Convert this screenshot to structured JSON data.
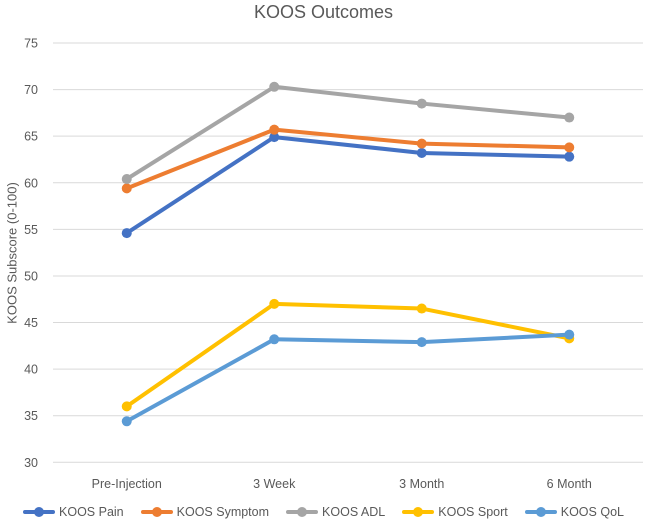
{
  "chart_data": {
    "type": "line",
    "title": "KOOS Outcomes",
    "xlabel": "",
    "ylabel": "KOOS Subscore (0-100)",
    "categories": [
      "Pre-Injection",
      "3 Week",
      "3 Month",
      "6 Month"
    ],
    "series": [
      {
        "name": "KOOS Pain",
        "color": "#4472C4",
        "values": [
          54.6,
          64.9,
          63.2,
          62.8
        ]
      },
      {
        "name": "KOOS Symptom",
        "color": "#ED7D31",
        "values": [
          59.4,
          65.7,
          64.2,
          63.8
        ]
      },
      {
        "name": "KOOS ADL",
        "color": "#A5A5A5",
        "values": [
          60.4,
          70.3,
          68.5,
          67.0
        ]
      },
      {
        "name": "KOOS Sport",
        "color": "#FFC000",
        "values": [
          36.0,
          47.0,
          46.5,
          43.3
        ]
      },
      {
        "name": "KOOS QoL",
        "color": "#5B9BD5",
        "values": [
          34.4,
          43.2,
          42.9,
          43.7
        ]
      }
    ],
    "ylim": [
      30,
      75
    ],
    "yticks": [
      75,
      70,
      65,
      60,
      55,
      50,
      45,
      40,
      35,
      30
    ],
    "grid": true,
    "gridline_color": "#D9D9D9",
    "text_color": "#595959",
    "legend_position": "bottom"
  }
}
